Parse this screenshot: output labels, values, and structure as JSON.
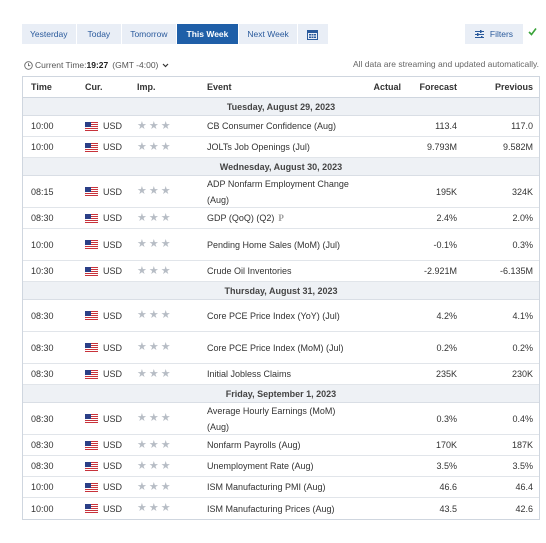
{
  "tabs": [
    {
      "label": "Yesterday",
      "active": false
    },
    {
      "label": "Today",
      "active": false
    },
    {
      "label": "Tomorrow",
      "active": false
    },
    {
      "label": "This Week",
      "active": true
    },
    {
      "label": "Next Week",
      "active": false
    }
  ],
  "calendar_icon": "calendar-icon",
  "filters_label": "Filters",
  "status": {
    "current_time_label": "Current Time:",
    "current_time": "19:27",
    "timezone": "(GMT -4:00)",
    "streaming_note": "All data are streaming and updated automatically."
  },
  "columns": {
    "time": "Time",
    "cur": "Cur.",
    "imp": "Imp.",
    "event": "Event",
    "actual": "Actual",
    "forecast": "Forecast",
    "previous": "Previous"
  },
  "days": [
    {
      "label": "Tuesday, August 29, 2023",
      "events": [
        {
          "time": "10:00",
          "cur": "USD",
          "event": "CB Consumer Confidence (Aug)",
          "actual": "",
          "forecast": "113.4",
          "previous": "117.0",
          "prelim": false
        },
        {
          "time": "10:00",
          "cur": "USD",
          "event": "JOLTs Job Openings (Jul)",
          "actual": "",
          "forecast": "9.793M",
          "previous": "9.582M",
          "prelim": false
        }
      ]
    },
    {
      "label": "Wednesday, August 30, 2023",
      "events": [
        {
          "time": "08:15",
          "cur": "USD",
          "event": "ADP Nonfarm Employment Change (Aug)",
          "actual": "",
          "forecast": "195K",
          "previous": "324K",
          "prelim": false
        },
        {
          "time": "08:30",
          "cur": "USD",
          "event": "GDP (QoQ) (Q2)",
          "actual": "",
          "forecast": "2.4%",
          "previous": "2.0%",
          "prelim": true
        },
        {
          "time": "10:00",
          "cur": "USD",
          "event": "Pending Home Sales (MoM) (Jul)",
          "actual": "",
          "forecast": "-0.1%",
          "previous": "0.3%",
          "prelim": false
        },
        {
          "time": "10:30",
          "cur": "USD",
          "event": "Crude Oil Inventories",
          "actual": "",
          "forecast": "-2.921M",
          "previous": "-6.135M",
          "prelim": false
        }
      ]
    },
    {
      "label": "Thursday, August 31, 2023",
      "events": [
        {
          "time": "08:30",
          "cur": "USD",
          "event": "Core PCE Price Index (YoY) (Jul)",
          "actual": "",
          "forecast": "4.2%",
          "previous": "4.1%",
          "prelim": false
        },
        {
          "time": "08:30",
          "cur": "USD",
          "event": "Core PCE Price Index (MoM) (Jul)",
          "actual": "",
          "forecast": "0.2%",
          "previous": "0.2%",
          "prelim": false
        },
        {
          "time": "08:30",
          "cur": "USD",
          "event": "Initial Jobless Claims",
          "actual": "",
          "forecast": "235K",
          "previous": "230K",
          "prelim": false
        }
      ]
    },
    {
      "label": "Friday, September 1, 2023",
      "events": [
        {
          "time": "08:30",
          "cur": "USD",
          "event": "Average Hourly Earnings (MoM) (Aug)",
          "actual": "",
          "forecast": "0.3%",
          "previous": "0.4%",
          "prelim": false
        },
        {
          "time": "08:30",
          "cur": "USD",
          "event": "Nonfarm Payrolls (Aug)",
          "actual": "",
          "forecast": "170K",
          "previous": "187K",
          "prelim": false
        },
        {
          "time": "08:30",
          "cur": "USD",
          "event": "Unemployment Rate (Aug)",
          "actual": "",
          "forecast": "3.5%",
          "previous": "3.5%",
          "prelim": false
        },
        {
          "time": "10:00",
          "cur": "USD",
          "event": "ISM Manufacturing PMI (Aug)",
          "actual": "",
          "forecast": "46.6",
          "previous": "46.4",
          "prelim": false
        },
        {
          "time": "10:00",
          "cur": "USD",
          "event": "ISM Manufacturing Prices (Aug)",
          "actual": "",
          "forecast": "43.5",
          "previous": "42.6",
          "prelim": false
        }
      ]
    }
  ],
  "importance_stars": 3,
  "prelim_symbol": "P",
  "colors": {
    "accent": "#1f5fa8",
    "tab_bg": "#e9eef6",
    "day_header_bg": "#eef1f5",
    "check": "#3aa33a",
    "star": "#b7bdc5"
  }
}
